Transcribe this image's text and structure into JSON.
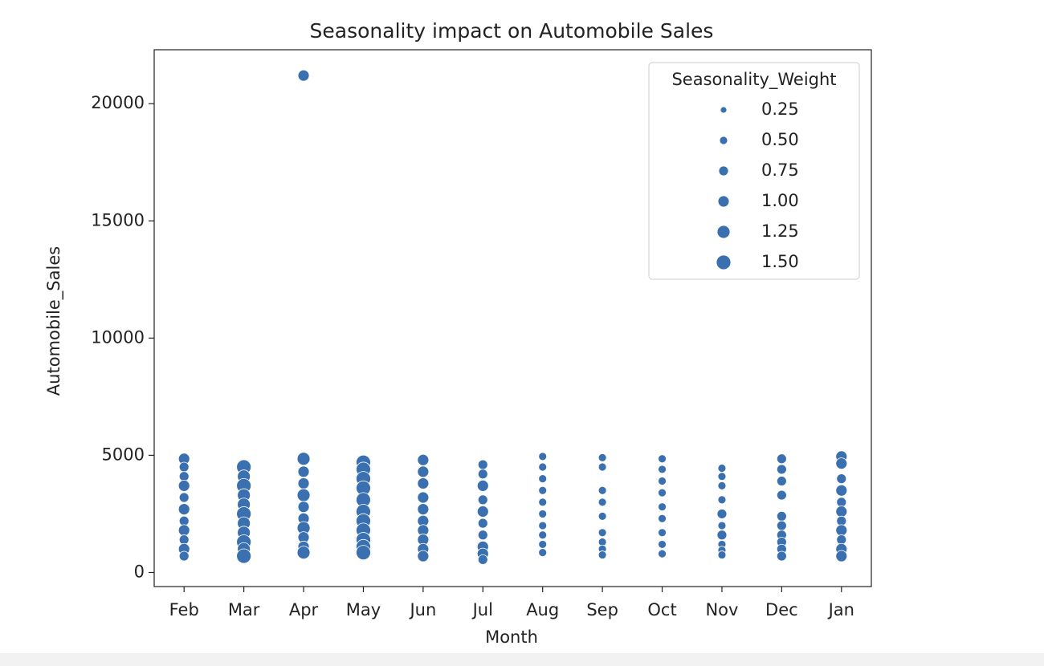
{
  "chart_data": {
    "type": "scatter",
    "title": "Seasonality impact on Automobile Sales",
    "x_label": "Month",
    "y_label": "Automobile_Sales",
    "categories": [
      "Feb",
      "Mar",
      "Apr",
      "May",
      "Jun",
      "Jul",
      "Aug",
      "Sep",
      "Oct",
      "Nov",
      "Dec",
      "Jan"
    ],
    "color": "#3a6fb0",
    "ylim": [
      -600,
      22300
    ],
    "yticks": [
      0,
      5000,
      10000,
      15000,
      20000
    ],
    "size_legend_title": "Seasonality_Weight",
    "size_legend": [
      0.25,
      {
        "value": 0.5,
        "label": "0.50"
      },
      0.75,
      {
        "value": 1.0,
        "label": "1.00"
      },
      1.25,
      {
        "value": 1.5,
        "label": "1.50"
      }
    ],
    "legend_position": "upper right",
    "x": [
      "Feb",
      "Feb",
      "Feb",
      "Feb",
      "Feb",
      "Feb",
      "Feb",
      "Feb",
      "Feb",
      "Feb",
      "Feb",
      "Mar",
      "Mar",
      "Mar",
      "Mar",
      "Mar",
      "Mar",
      "Mar",
      "Mar",
      "Mar",
      "Mar",
      "Mar",
      "Apr",
      "Apr",
      "Apr",
      "Apr",
      "Apr",
      "Apr",
      "Apr",
      "Apr",
      "Apr",
      "Apr",
      "Apr",
      "May",
      "May",
      "May",
      "May",
      "May",
      "May",
      "May",
      "May",
      "May",
      "May",
      "May",
      "Jun",
      "Jun",
      "Jun",
      "Jun",
      "Jun",
      "Jun",
      "Jun",
      "Jun",
      "Jun",
      "Jun",
      "Jul",
      "Jul",
      "Jul",
      "Jul",
      "Jul",
      "Jul",
      "Jul",
      "Jul",
      "Jul",
      "Jul",
      "Aug",
      "Aug",
      "Aug",
      "Aug",
      "Aug",
      "Aug",
      "Aug",
      "Aug",
      "Aug",
      "Aug",
      "Sep",
      "Sep",
      "Sep",
      "Sep",
      "Sep",
      "Sep",
      "Sep",
      "Sep",
      "Sep",
      "Oct",
      "Oct",
      "Oct",
      "Oct",
      "Oct",
      "Oct",
      "Oct",
      "Oct",
      "Oct",
      "Nov",
      "Nov",
      "Nov",
      "Nov",
      "Nov",
      "Nov",
      "Nov",
      "Nov",
      "Nov",
      "Nov",
      "Dec",
      "Dec",
      "Dec",
      "Dec",
      "Dec",
      "Dec",
      "Dec",
      "Dec",
      "Dec",
      "Dec",
      "Jan",
      "Jan",
      "Jan",
      "Jan",
      "Jan",
      "Jan",
      "Jan",
      "Jan",
      "Jan",
      "Jan",
      "Jan"
    ],
    "values": [
      4850,
      4500,
      4100,
      3700,
      3200,
      2700,
      2200,
      1800,
      1400,
      1000,
      700,
      4500,
      4100,
      3700,
      3300,
      2900,
      2500,
      2100,
      1700,
      1300,
      1000,
      700,
      21200,
      4850,
      4300,
      3800,
      3300,
      2800,
      2300,
      1900,
      1500,
      1100,
      850,
      4700,
      4400,
      4000,
      3600,
      3100,
      2600,
      2200,
      1800,
      1400,
      1100,
      850,
      4800,
      4300,
      3800,
      3200,
      2700,
      2200,
      1800,
      1400,
      1000,
      700,
      4600,
      4200,
      3700,
      3100,
      2600,
      2100,
      1600,
      1100,
      800,
      550,
      4950,
      4500,
      4000,
      3500,
      3000,
      2500,
      2000,
      1600,
      1200,
      850,
      4900,
      4500,
      3500,
      3000,
      2400,
      1700,
      1300,
      1000,
      750,
      4850,
      4400,
      3900,
      3400,
      2800,
      2300,
      1700,
      1200,
      800,
      4450,
      4100,
      3700,
      3100,
      2500,
      2000,
      1600,
      1200,
      950,
      750,
      4850,
      4400,
      3900,
      3300,
      2400,
      2000,
      1600,
      1300,
      1000,
      700,
      4950,
      4650,
      4000,
      3500,
      3000,
      2600,
      2200,
      1800,
      1400,
      1000,
      700
    ],
    "sizes": [
      1.0,
      0.75,
      0.75,
      1.0,
      0.75,
      1.0,
      0.75,
      1.0,
      0.75,
      1.0,
      0.75,
      1.5,
      1.25,
      1.5,
      1.25,
      1.25,
      1.5,
      1.25,
      1.25,
      1.5,
      1.25,
      1.5,
      1.0,
      1.25,
      1.0,
      1.0,
      1.25,
      1.0,
      1.0,
      1.25,
      1.0,
      1.0,
      1.25,
      1.5,
      1.5,
      1.5,
      1.5,
      1.5,
      1.5,
      1.5,
      1.5,
      1.5,
      1.5,
      1.5,
      1.0,
      1.0,
      1.0,
      1.0,
      1.0,
      1.0,
      1.0,
      1.0,
      1.0,
      1.0,
      0.75,
      0.75,
      1.0,
      0.75,
      1.0,
      0.75,
      0.75,
      1.0,
      1.0,
      0.75,
      0.5,
      0.5,
      0.5,
      0.5,
      0.5,
      0.5,
      0.5,
      0.5,
      0.5,
      0.5,
      0.5,
      0.5,
      0.5,
      0.5,
      0.5,
      0.5,
      0.5,
      0.5,
      0.5,
      0.5,
      0.5,
      0.5,
      0.5,
      0.5,
      0.5,
      0.5,
      0.5,
      0.5,
      0.5,
      0.5,
      0.5,
      0.5,
      0.75,
      0.5,
      0.75,
      0.5,
      0.5,
      0.5,
      0.75,
      0.75,
      0.75,
      0.75,
      0.75,
      0.75,
      0.75,
      0.75,
      0.75,
      0.75,
      1.0,
      1.0,
      0.75,
      1.0,
      0.75,
      1.0,
      0.75,
      1.0,
      0.75,
      1.0,
      1.0
    ]
  }
}
